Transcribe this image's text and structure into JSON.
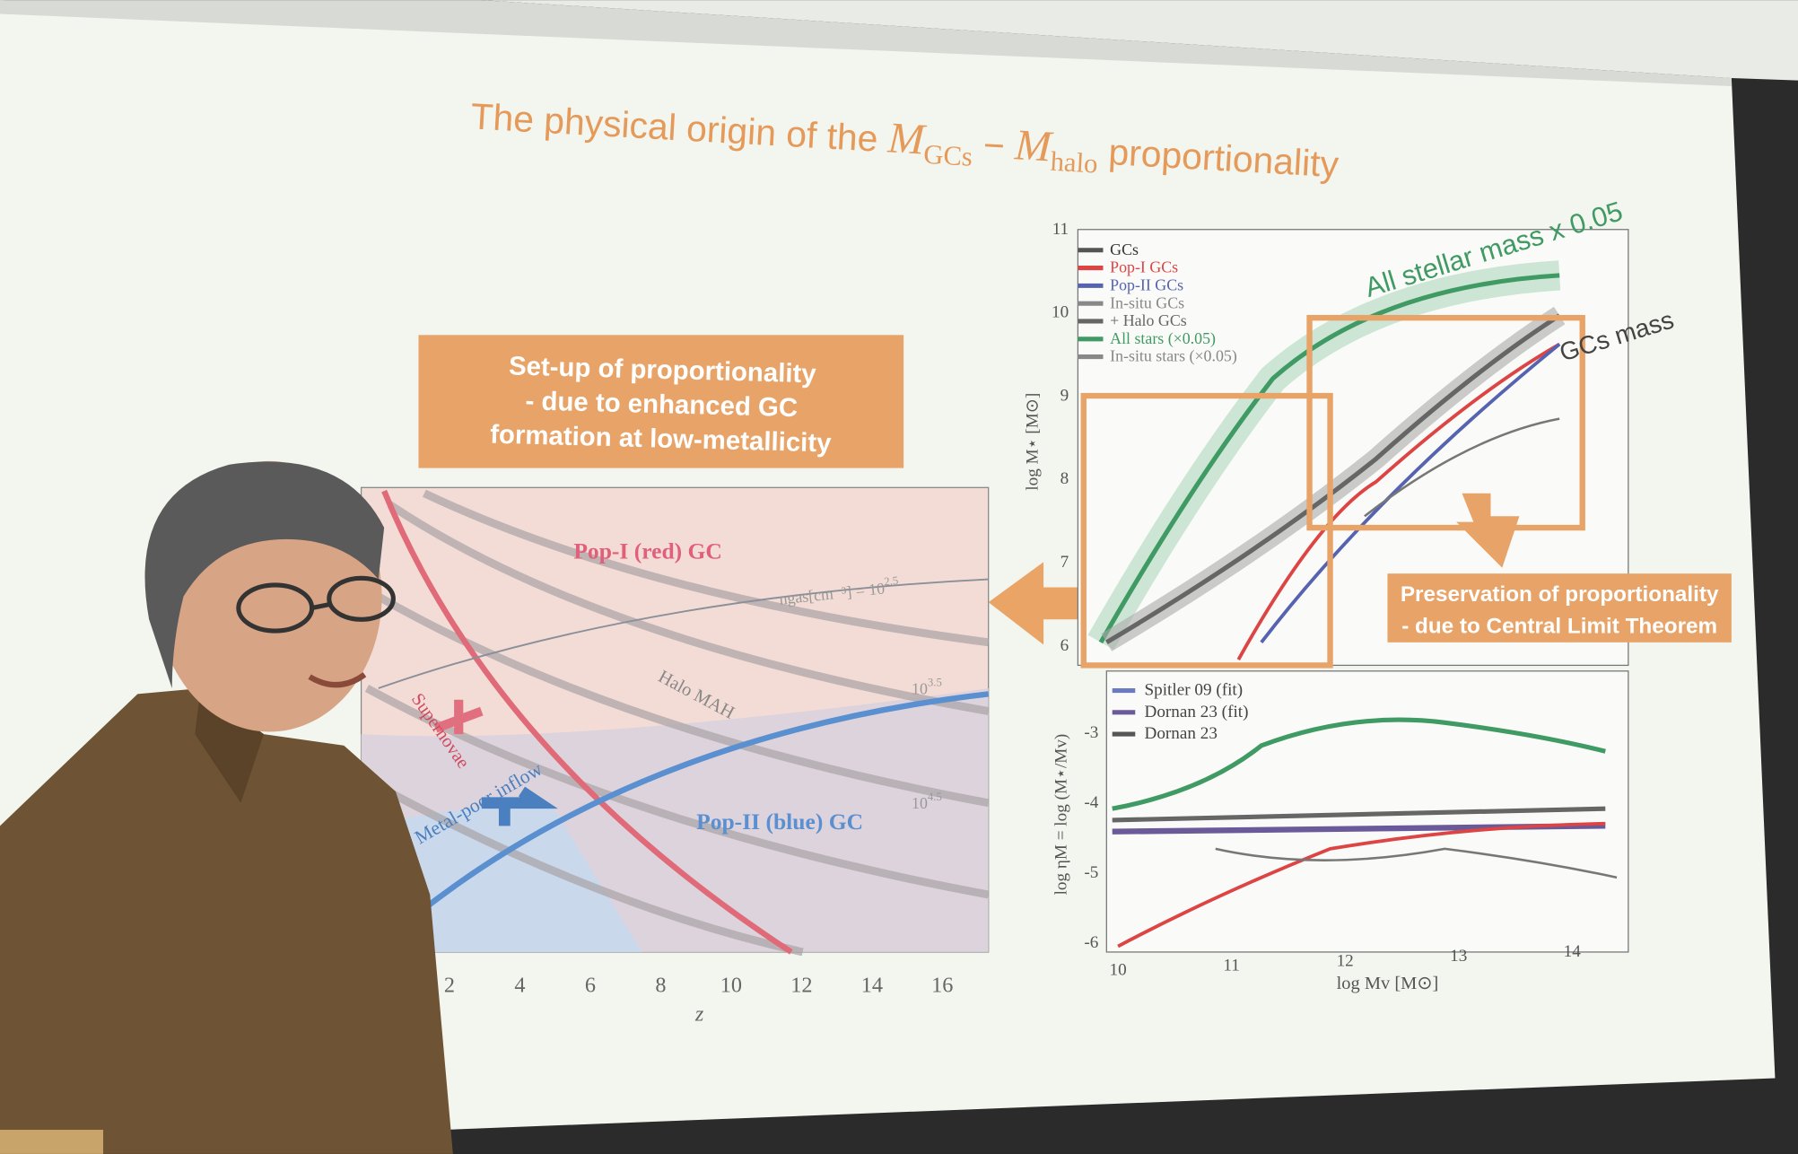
{
  "slide": {
    "title": {
      "lead": "The physical origin of the",
      "m1": "M",
      "s1": "GCs",
      "op": "−",
      "m2": "M",
      "s2": "halo",
      "tail": "proportionality"
    },
    "setup_box": {
      "lines": [
        "Set-up of proportionality",
        "- due to enhanced GC",
        "formation at low-metallicity"
      ]
    },
    "preservation_box": {
      "lines": [
        "Preservation of proportionality",
        "- due to Central Limit Theorem"
      ]
    },
    "left_plot": {
      "pop1_label": "Pop-I (red) GC",
      "pop2_label": "Pop-II (blue) GC",
      "halo_label": "Halo MAH",
      "supernovae_label": "Supernovae",
      "inflow_label": "Metal-poor inflow",
      "density_label": {
        "text": "ngas[cm⁻³] = 10",
        "exp": "2.5"
      },
      "density_levels": [
        {
          "base": "10",
          "exp": "3.5"
        },
        {
          "base": "10",
          "exp": "4.5"
        }
      ],
      "xticks": [
        2,
        4,
        6,
        8,
        10,
        12,
        14,
        16
      ],
      "xlabel": "z"
    },
    "upper_plot": {
      "yticks": [
        6,
        7,
        8,
        9,
        10,
        11
      ],
      "ylabel": "log M⋆ [M⊙]",
      "legend": [
        "GCs",
        "Pop-I GCs",
        "Pop-II GCs",
        "In-situ GCs",
        "+ Halo GCs",
        "All stars (×0.05)",
        "In-situ stars (×0.05)"
      ],
      "annotation_all": "All stellar mass x 0.05",
      "annotation_gcs": "GCs mass"
    },
    "lower_plot": {
      "yticks": [
        -3,
        -4,
        -5,
        -6
      ],
      "xticks": [
        10,
        11,
        12,
        13,
        14
      ],
      "ylabel": "log ηM = log (M⋆/Mv)",
      "xlabel": "log Mv [M⊙]",
      "legend": [
        "Spitler 09 (fit)",
        "Dornan 23 (fit)",
        "Dornan 23"
      ]
    }
  }
}
